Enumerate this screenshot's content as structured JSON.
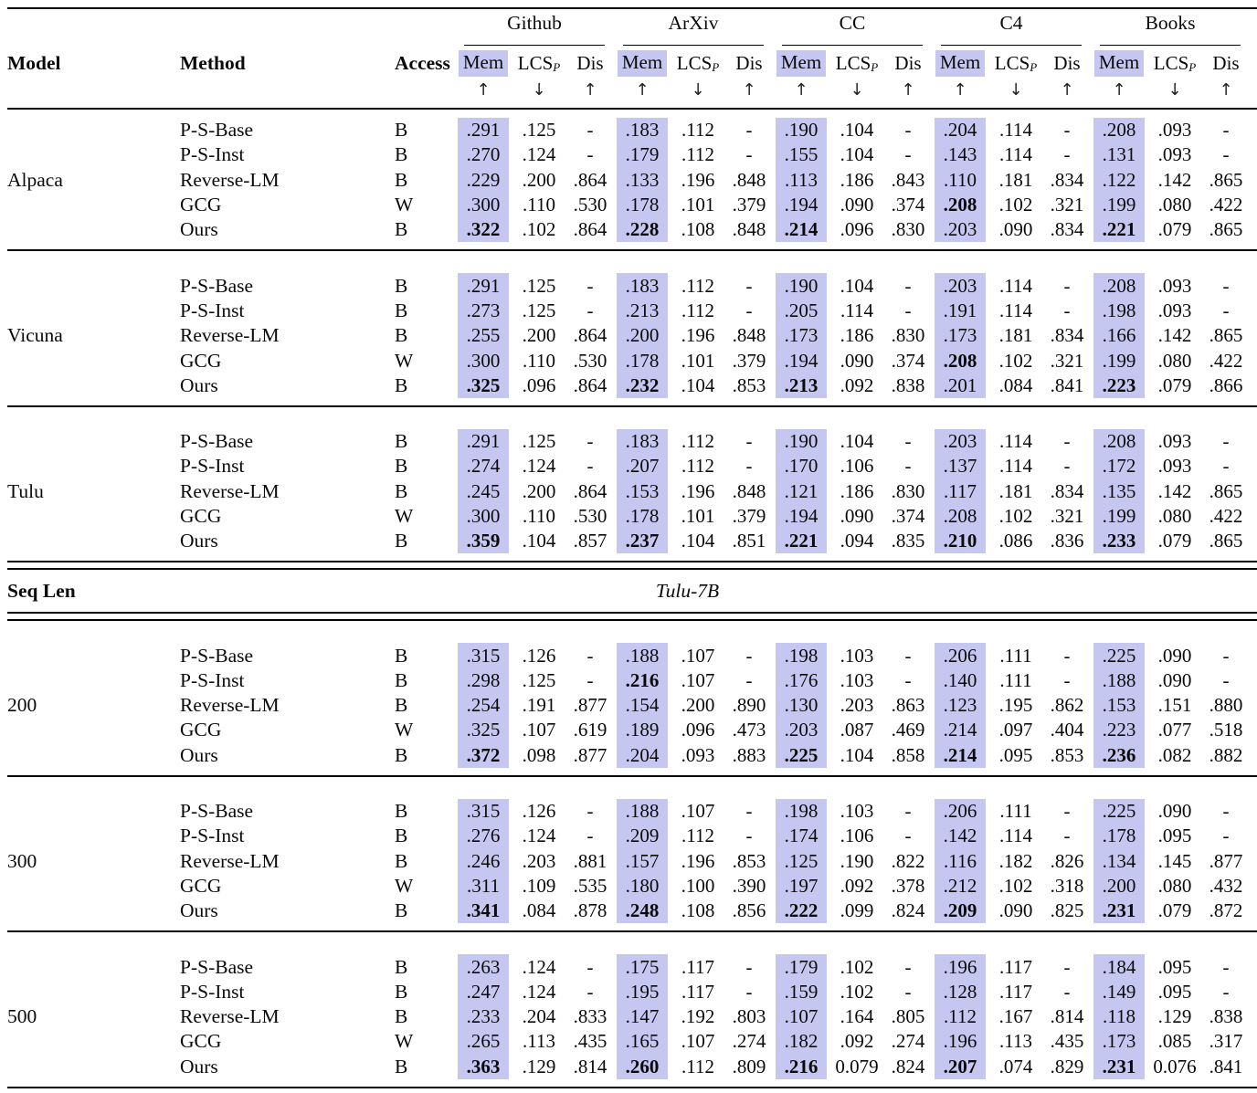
{
  "colors": {
    "mem_highlight": "#c6c7f1",
    "text": "#0a0a0a"
  },
  "header": {
    "model": "Model",
    "method": "Method",
    "access": "Access",
    "groups": [
      "Github",
      "ArXiv",
      "CC",
      "C4",
      "Books"
    ],
    "metric_mem": "Mem",
    "metric_lcs": "LCS",
    "metric_lcs_sub": "P",
    "metric_dis": "Dis",
    "arrow_up": "↑",
    "arrow_down": "↓"
  },
  "section_header": {
    "label": "Seq Len",
    "value": "Tulu-7B"
  },
  "blocks": [
    {
      "label": "Alpaca",
      "rule_after": "single",
      "rows": [
        {
          "method": "P-S-Base",
          "access": "B",
          "values": [
            ".291",
            ".125",
            "-",
            ".183",
            ".112",
            "-",
            ".190",
            ".104",
            "-",
            ".204",
            ".114",
            "-",
            ".208",
            ".093",
            "-"
          ],
          "bold": []
        },
        {
          "method": "P-S-Inst",
          "access": "B",
          "values": [
            ".270",
            ".124",
            "-",
            ".179",
            ".112",
            "-",
            ".155",
            ".104",
            "-",
            ".143",
            ".114",
            "-",
            ".131",
            ".093",
            "-"
          ],
          "bold": []
        },
        {
          "method": "Reverse-LM",
          "access": "B",
          "values": [
            ".229",
            ".200",
            ".864",
            ".133",
            ".196",
            ".848",
            ".113",
            ".186",
            ".843",
            ".110",
            ".181",
            ".834",
            ".122",
            ".142",
            ".865"
          ],
          "bold": []
        },
        {
          "method": "GCG",
          "access": "W",
          "values": [
            ".300",
            ".110",
            ".530",
            ".178",
            ".101",
            ".379",
            ".194",
            ".090",
            ".374",
            ".208",
            ".102",
            ".321",
            ".199",
            ".080",
            ".422"
          ],
          "bold": [
            9
          ]
        },
        {
          "method": "Ours",
          "access": "B",
          "values": [
            ".322",
            ".102",
            ".864",
            ".228",
            ".108",
            ".848",
            ".214",
            ".096",
            ".830",
            ".203",
            ".090",
            ".834",
            ".221",
            ".079",
            ".865"
          ],
          "bold": [
            0,
            3,
            6,
            12
          ]
        }
      ]
    },
    {
      "label": "Vicuna",
      "rule_after": "single",
      "rows": [
        {
          "method": "P-S-Base",
          "access": "B",
          "values": [
            ".291",
            ".125",
            "-",
            ".183",
            ".112",
            "-",
            ".190",
            ".104",
            "-",
            ".203",
            ".114",
            "-",
            ".208",
            ".093",
            "-"
          ],
          "bold": []
        },
        {
          "method": "P-S-Inst",
          "access": "B",
          "values": [
            ".273",
            ".125",
            "-",
            ".213",
            ".112",
            "-",
            ".205",
            ".114",
            "-",
            ".191",
            ".114",
            "-",
            ".198",
            ".093",
            "-"
          ],
          "bold": []
        },
        {
          "method": "Reverse-LM",
          "access": "B",
          "values": [
            ".255",
            ".200",
            ".864",
            ".200",
            ".196",
            ".848",
            ".173",
            ".186",
            ".830",
            ".173",
            ".181",
            ".834",
            ".166",
            ".142",
            ".865"
          ],
          "bold": []
        },
        {
          "method": "GCG",
          "access": "W",
          "values": [
            ".300",
            ".110",
            ".530",
            ".178",
            ".101",
            ".379",
            ".194",
            ".090",
            ".374",
            ".208",
            ".102",
            ".321",
            ".199",
            ".080",
            ".422"
          ],
          "bold": [
            9
          ]
        },
        {
          "method": "Ours",
          "access": "B",
          "values": [
            ".325",
            ".096",
            ".864",
            ".232",
            ".104",
            ".853",
            ".213",
            ".092",
            ".838",
            ".201",
            ".084",
            ".841",
            ".223",
            ".079",
            ".866"
          ],
          "bold": [
            0,
            3,
            6,
            12
          ]
        }
      ]
    },
    {
      "label": "Tulu",
      "rule_after": "double",
      "rows": [
        {
          "method": "P-S-Base",
          "access": "B",
          "values": [
            ".291",
            ".125",
            "-",
            ".183",
            ".112",
            "-",
            ".190",
            ".104",
            "-",
            ".203",
            ".114",
            "-",
            ".208",
            ".093",
            "-"
          ],
          "bold": []
        },
        {
          "method": "P-S-Inst",
          "access": "B",
          "values": [
            ".274",
            ".124",
            "-",
            ".207",
            ".112",
            "-",
            ".170",
            ".106",
            "-",
            ".137",
            ".114",
            "-",
            ".172",
            ".093",
            "-"
          ],
          "bold": []
        },
        {
          "method": "Reverse-LM",
          "access": "B",
          "values": [
            ".245",
            ".200",
            ".864",
            ".153",
            ".196",
            ".848",
            ".121",
            ".186",
            ".830",
            ".117",
            ".181",
            ".834",
            ".135",
            ".142",
            ".865"
          ],
          "bold": []
        },
        {
          "method": "GCG",
          "access": "W",
          "values": [
            ".300",
            ".110",
            ".530",
            ".178",
            ".101",
            ".379",
            ".194",
            ".090",
            ".374",
            ".208",
            ".102",
            ".321",
            ".199",
            ".080",
            ".422"
          ],
          "bold": []
        },
        {
          "method": "Ours",
          "access": "B",
          "values": [
            ".359",
            ".104",
            ".857",
            ".237",
            ".104",
            ".851",
            ".221",
            ".094",
            ".835",
            ".210",
            ".086",
            ".836",
            ".233",
            ".079",
            ".865"
          ],
          "bold": [
            0,
            3,
            6,
            9,
            12
          ]
        }
      ]
    },
    {
      "type": "section",
      "label": "Seq Len",
      "value": "Tulu-7B",
      "rule_after": "double"
    },
    {
      "label": "200",
      "rule_after": "single",
      "rows": [
        {
          "method": "P-S-Base",
          "access": "B",
          "values": [
            ".315",
            ".126",
            "-",
            ".188",
            ".107",
            "-",
            ".198",
            ".103",
            "-",
            ".206",
            ".111",
            "-",
            ".225",
            ".090",
            "-"
          ],
          "bold": []
        },
        {
          "method": "P-S-Inst",
          "access": "B",
          "values": [
            ".298",
            ".125",
            "-",
            ".216",
            ".107",
            "-",
            ".176",
            ".103",
            "-",
            ".140",
            ".111",
            "-",
            ".188",
            ".090",
            "-"
          ],
          "bold": [
            3
          ]
        },
        {
          "method": "Reverse-LM",
          "access": "B",
          "values": [
            ".254",
            ".191",
            ".877",
            ".154",
            ".200",
            ".890",
            ".130",
            ".203",
            ".863",
            ".123",
            ".195",
            ".862",
            ".153",
            ".151",
            ".880"
          ],
          "bold": []
        },
        {
          "method": "GCG",
          "access": "W",
          "values": [
            ".325",
            ".107",
            ".619",
            ".189",
            ".096",
            ".473",
            ".203",
            ".087",
            ".469",
            ".214",
            ".097",
            ".404",
            ".223",
            ".077",
            ".518"
          ],
          "bold": []
        },
        {
          "method": "Ours",
          "access": "B",
          "values": [
            ".372",
            ".098",
            ".877",
            ".204",
            ".093",
            ".883",
            ".225",
            ".104",
            ".858",
            ".214",
            ".095",
            ".853",
            ".236",
            ".082",
            ".882"
          ],
          "bold": [
            0,
            6,
            9,
            12
          ]
        }
      ]
    },
    {
      "label": "300",
      "rule_after": "single",
      "rows": [
        {
          "method": "P-S-Base",
          "access": "B",
          "values": [
            ".315",
            ".126",
            "-",
            ".188",
            ".107",
            "-",
            ".198",
            ".103",
            "-",
            ".206",
            ".111",
            "-",
            ".225",
            ".090",
            "-"
          ],
          "bold": []
        },
        {
          "method": "P-S-Inst",
          "access": "B",
          "values": [
            ".276",
            ".124",
            "-",
            ".209",
            ".112",
            "-",
            ".174",
            ".106",
            "-",
            ".142",
            ".114",
            "-",
            ".178",
            ".095",
            "-"
          ],
          "bold": []
        },
        {
          "method": "Reverse-LM",
          "access": "B",
          "values": [
            ".246",
            ".203",
            ".881",
            ".157",
            ".196",
            ".853",
            ".125",
            ".190",
            ".822",
            ".116",
            ".182",
            ".826",
            ".134",
            ".145",
            ".877"
          ],
          "bold": []
        },
        {
          "method": "GCG",
          "access": "W",
          "values": [
            ".311",
            ".109",
            ".535",
            ".180",
            ".100",
            ".390",
            ".197",
            ".092",
            ".378",
            ".212",
            ".102",
            ".318",
            ".200",
            ".080",
            ".432"
          ],
          "bold": []
        },
        {
          "method": "Ours",
          "access": "B",
          "values": [
            ".341",
            ".084",
            ".878",
            ".248",
            ".108",
            ".856",
            ".222",
            ".099",
            ".824",
            ".209",
            ".090",
            ".825",
            ".231",
            ".079",
            ".872"
          ],
          "bold": [
            0,
            3,
            6,
            9,
            12
          ]
        }
      ]
    },
    {
      "label": "500",
      "rule_after": "single",
      "rows": [
        {
          "method": "P-S-Base",
          "access": "B",
          "values": [
            ".263",
            ".124",
            "-",
            ".175",
            ".117",
            "-",
            ".179",
            ".102",
            "-",
            ".196",
            ".117",
            "-",
            ".184",
            ".095",
            "-"
          ],
          "bold": []
        },
        {
          "method": "P-S-Inst",
          "access": "B",
          "values": [
            ".247",
            ".124",
            "-",
            ".195",
            ".117",
            "-",
            ".159",
            ".102",
            "-",
            ".128",
            ".117",
            "-",
            ".149",
            ".095",
            "-"
          ],
          "bold": []
        },
        {
          "method": "Reverse-LM",
          "access": "B",
          "values": [
            ".233",
            ".204",
            ".833",
            ".147",
            ".192",
            ".803",
            ".107",
            ".164",
            ".805",
            ".112",
            ".167",
            ".814",
            ".118",
            ".129",
            ".838"
          ],
          "bold": []
        },
        {
          "method": "GCG",
          "access": "W",
          "values": [
            ".265",
            ".113",
            ".435",
            ".165",
            ".107",
            ".274",
            ".182",
            ".092",
            ".274",
            ".196",
            ".113",
            ".435",
            ".173",
            ".085",
            ".317"
          ],
          "bold": []
        },
        {
          "method": "Ours",
          "access": "B",
          "values": [
            ".363",
            ".129",
            ".814",
            ".260",
            ".112",
            ".809",
            ".216",
            "0.079",
            ".824",
            ".207",
            ".074",
            ".829",
            ".231",
            "0.076",
            ".841"
          ],
          "bold": [
            0,
            3,
            6,
            9,
            12
          ]
        }
      ]
    }
  ]
}
